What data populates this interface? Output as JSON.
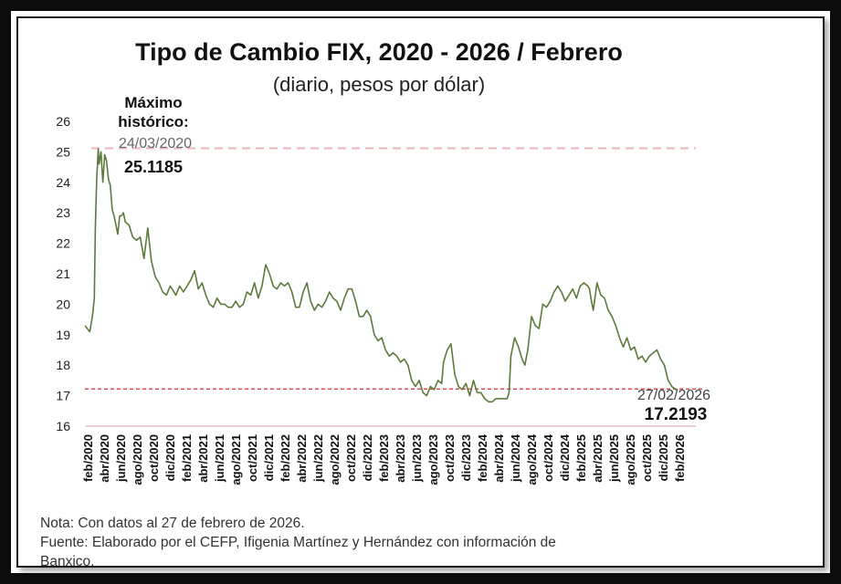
{
  "chart_data": {
    "type": "line",
    "title": "Tipo de Cambio FIX, 2020 - 2026 / Febrero",
    "subtitle": "(diario, pesos por dólar)",
    "ylim": [
      16,
      26
    ],
    "yticks": [
      "16",
      "17",
      "18",
      "19",
      "20",
      "21",
      "22",
      "23",
      "24",
      "25",
      "26"
    ],
    "categories": [
      "feb/2020",
      "abr/2020",
      "jun/2020",
      "ago/2020",
      "oct/2020",
      "dic/2020",
      "feb/2021",
      "abr/2021",
      "jun/2021",
      "ago/2021",
      "oct/2021",
      "dic/2021",
      "feb/2022",
      "abr/2022",
      "jun/2022",
      "ago/2022",
      "oct/2022",
      "dic/2022",
      "feb/2023",
      "abr/2023",
      "jun/2023",
      "ago/2023",
      "oct/2023",
      "dic/2023",
      "feb/2024",
      "abr/2024",
      "jun/2024",
      "ago/2024",
      "oct/2024",
      "dic/2024",
      "feb/2025",
      "abr/2025",
      "jun/2025",
      "ago/2025",
      "oct/2025",
      "dic/2025",
      "feb/2026"
    ],
    "series": [
      {
        "color": "#5b7a3c",
        "x": [
          "2020-02-03",
          "2020-02-21",
          "2020-03-02",
          "2020-03-09",
          "2020-03-13",
          "2020-03-18",
          "2020-03-24",
          "2020-03-27",
          "2020-04-03",
          "2020-04-10",
          "2020-04-17",
          "2020-04-24",
          "2020-05-01",
          "2020-05-08",
          "2020-05-15",
          "2020-05-22",
          "2020-05-29",
          "2020-06-05",
          "2020-06-12",
          "2020-06-19",
          "2020-06-26",
          "2020-07-03",
          "2020-07-17",
          "2020-07-31",
          "2020-08-14",
          "2020-08-28",
          "2020-09-11",
          "2020-09-25",
          "2020-10-09",
          "2020-10-23",
          "2020-11-06",
          "2020-11-20",
          "2020-12-04",
          "2020-12-18",
          "2021-01-08",
          "2021-01-22",
          "2021-02-05",
          "2021-02-19",
          "2021-03-05",
          "2021-03-19",
          "2021-04-02",
          "2021-04-16",
          "2021-04-30",
          "2021-05-14",
          "2021-05-28",
          "2021-06-11",
          "2021-06-25",
          "2021-07-09",
          "2021-07-23",
          "2021-08-06",
          "2021-08-20",
          "2021-09-03",
          "2021-09-17",
          "2021-10-01",
          "2021-10-15",
          "2021-10-29",
          "2021-11-12",
          "2021-11-26",
          "2021-12-10",
          "2021-12-24",
          "2022-01-07",
          "2022-01-21",
          "2022-02-04",
          "2022-02-18",
          "2022-03-04",
          "2022-03-18",
          "2022-04-01",
          "2022-04-15",
          "2022-04-29",
          "2022-05-13",
          "2022-05-27",
          "2022-06-10",
          "2022-06-24",
          "2022-07-08",
          "2022-07-22",
          "2022-08-05",
          "2022-08-19",
          "2022-09-02",
          "2022-09-16",
          "2022-09-30",
          "2022-10-14",
          "2022-10-28",
          "2022-11-11",
          "2022-11-25",
          "2022-12-09",
          "2022-12-23",
          "2023-01-06",
          "2023-01-20",
          "2023-02-03",
          "2023-02-17",
          "2023-03-03",
          "2023-03-17",
          "2023-03-31",
          "2023-04-14",
          "2023-04-28",
          "2023-05-12",
          "2023-05-26",
          "2023-06-09",
          "2023-06-23",
          "2023-07-07",
          "2023-07-21",
          "2023-08-04",
          "2023-08-18",
          "2023-09-01",
          "2023-09-15",
          "2023-09-29",
          "2023-10-06",
          "2023-10-20",
          "2023-11-03",
          "2023-11-17",
          "2023-12-01",
          "2023-12-15",
          "2023-12-29",
          "2024-01-12",
          "2024-01-26",
          "2024-02-09",
          "2024-02-23",
          "2024-03-08",
          "2024-03-22",
          "2024-04-05",
          "2024-04-19",
          "2024-05-03",
          "2024-05-17",
          "2024-05-31",
          "2024-06-07",
          "2024-06-14",
          "2024-06-28",
          "2024-07-12",
          "2024-07-26",
          "2024-08-05",
          "2024-08-16",
          "2024-08-30",
          "2024-09-13",
          "2024-09-27",
          "2024-10-11",
          "2024-10-25",
          "2024-11-08",
          "2024-11-22",
          "2024-12-06",
          "2024-12-20",
          "2025-01-03",
          "2025-01-17",
          "2025-01-31",
          "2025-02-14",
          "2025-02-28",
          "2025-03-14",
          "2025-03-28",
          "2025-04-04",
          "2025-04-09",
          "2025-04-18",
          "2025-05-02",
          "2025-05-16",
          "2025-05-30",
          "2025-06-13",
          "2025-06-27",
          "2025-07-11",
          "2025-07-25",
          "2025-08-08",
          "2025-08-22",
          "2025-09-05",
          "2025-09-19",
          "2025-10-03",
          "2025-10-17",
          "2025-10-31",
          "2025-11-14",
          "2025-11-28",
          "2025-12-12",
          "2025-12-26",
          "2026-01-09",
          "2026-01-23",
          "2026-02-06",
          "2026-02-20",
          "2026-02-27"
        ],
        "y": [
          19.3,
          19.1,
          19.6,
          20.2,
          22.5,
          24.1,
          25.1,
          24.6,
          25.0,
          24.0,
          24.9,
          24.7,
          24.1,
          23.9,
          23.1,
          22.9,
          22.6,
          22.3,
          22.9,
          22.9,
          23.0,
          22.7,
          22.6,
          22.2,
          22.1,
          22.2,
          21.5,
          22.5,
          21.4,
          20.9,
          20.7,
          20.4,
          20.3,
          20.6,
          20.3,
          20.6,
          20.4,
          20.6,
          20.8,
          21.1,
          20.5,
          20.7,
          20.3,
          20.0,
          19.9,
          20.2,
          20.0,
          20.0,
          19.9,
          19.9,
          20.1,
          19.9,
          20.0,
          20.4,
          20.3,
          20.7,
          20.2,
          20.6,
          21.3,
          21.0,
          20.6,
          20.5,
          20.7,
          20.6,
          20.7,
          20.4,
          19.9,
          19.9,
          20.4,
          20.7,
          20.1,
          19.8,
          20.0,
          19.9,
          20.1,
          20.4,
          20.2,
          20.1,
          19.8,
          20.2,
          20.5,
          20.5,
          20.1,
          19.6,
          19.6,
          19.8,
          19.6,
          19.0,
          18.8,
          18.9,
          18.5,
          18.3,
          18.4,
          18.3,
          18.1,
          18.2,
          18.0,
          17.5,
          17.3,
          17.5,
          17.1,
          17.0,
          17.3,
          17.2,
          17.5,
          17.4,
          18.1,
          18.5,
          18.7,
          17.7,
          17.3,
          17.2,
          17.4,
          17.0,
          17.5,
          17.1,
          17.1,
          16.9,
          16.8,
          16.8,
          16.9,
          16.9,
          16.9,
          16.9,
          17.1,
          18.3,
          18.9,
          18.6,
          18.2,
          18.0,
          18.5,
          19.6,
          19.3,
          19.2,
          20.0,
          19.9,
          20.1,
          20.4,
          20.6,
          20.4,
          20.1,
          20.3,
          20.5,
          20.2,
          20.6,
          20.7,
          20.6,
          20.5,
          20.2,
          19.8,
          20.7,
          20.3,
          20.2,
          19.8,
          19.6,
          19.3,
          18.9,
          18.6,
          18.9,
          18.5,
          18.6,
          18.2,
          18.3,
          18.1,
          18.3,
          18.4,
          18.5,
          18.2,
          18.0,
          17.5,
          17.3,
          17.2,
          17.2
        ]
      }
    ],
    "reference_lines": [
      {
        "y": 25.1185,
        "color": "#e8b4b8",
        "style": "dashed"
      },
      {
        "y": 17.2193,
        "color": "#d62a2a",
        "style": "dashed"
      }
    ],
    "annotations": {
      "max_title_line1": "Máximo",
      "max_title_line2": "histórico:",
      "max_date": "24/03/2020",
      "max_value": "25.1185",
      "last_date": "27/02/2026",
      "last_value": "17.2193"
    },
    "grid": false
  },
  "notes": {
    "line1": "Nota: Con datos al 27 de febrero de 2026.",
    "line2": "Fuente: Elaborado por el CEFP, Ifigenia Martínez y Hernández con información de",
    "line3": "Banxico."
  }
}
